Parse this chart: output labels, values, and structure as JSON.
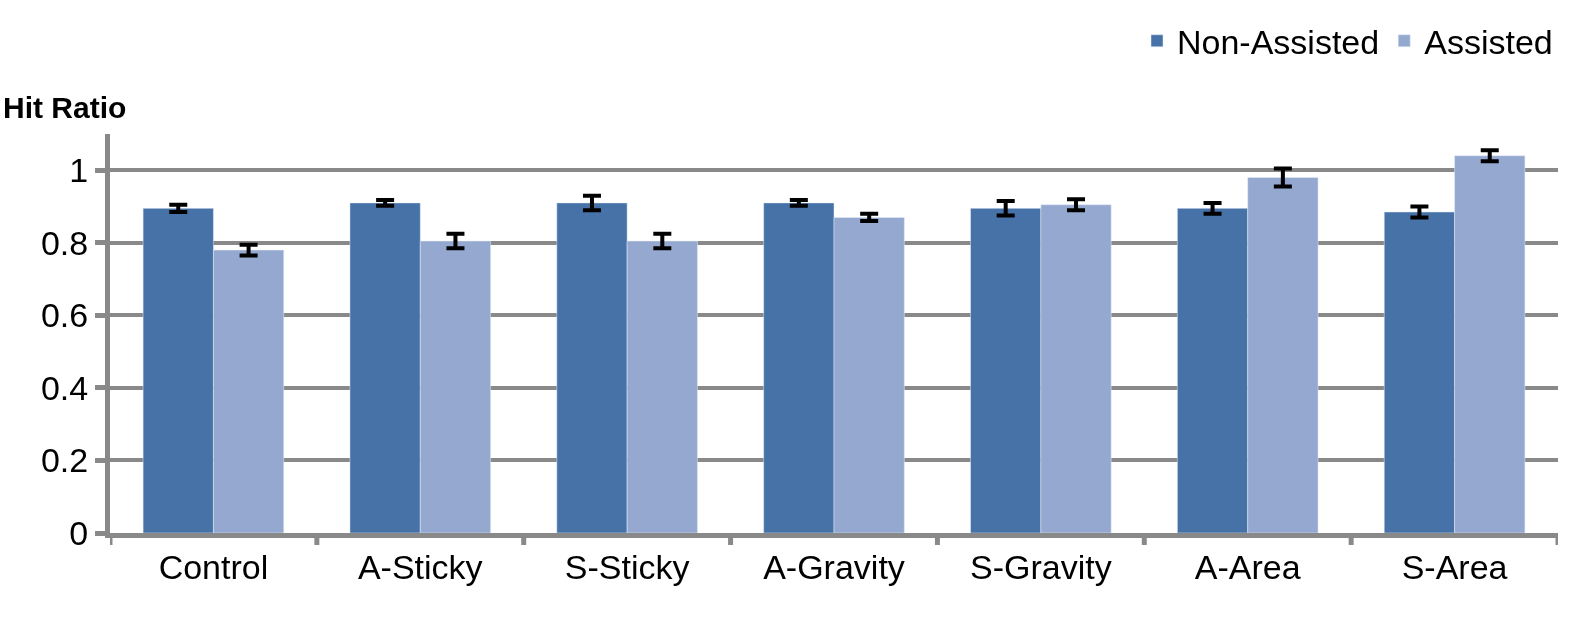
{
  "chart_data": {
    "type": "bar",
    "ylabel": "Hit Ratio",
    "categories": [
      "Control",
      "A-Sticky",
      "S-Sticky",
      "A-Gravity",
      "S-Gravity",
      "A-Area",
      "S-Area"
    ],
    "series": [
      {
        "name": "Non-Assisted",
        "color": "#4672a8",
        "values": [
          0.895,
          0.91,
          0.91,
          0.91,
          0.895,
          0.895,
          0.885
        ],
        "errors": [
          0.01,
          0.008,
          0.02,
          0.008,
          0.02,
          0.015,
          0.015
        ]
      },
      {
        "name": "Assisted",
        "color": "#95a9d0",
        "values": [
          0.78,
          0.805,
          0.805,
          0.87,
          0.905,
          0.98,
          1.04
        ],
        "errors": [
          0.015,
          0.02,
          0.02,
          0.01,
          0.015,
          0.025,
          0.015
        ]
      }
    ],
    "ylim": [
      0,
      1.1
    ],
    "yticks": [
      0,
      0.2,
      0.4,
      0.6,
      0.8,
      1
    ],
    "grid": "y",
    "legend": "top right"
  }
}
